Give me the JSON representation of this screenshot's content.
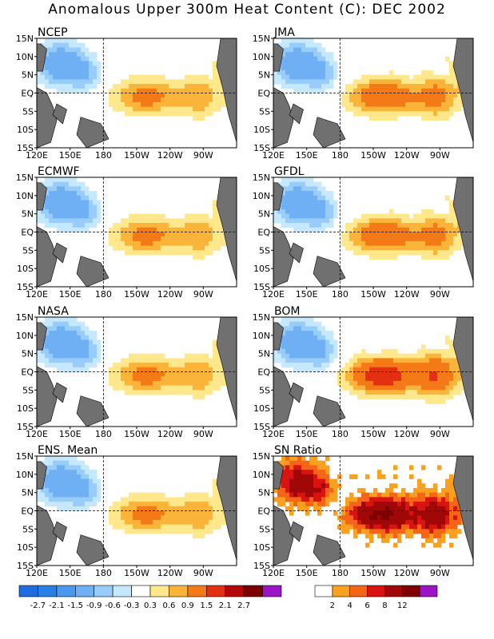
{
  "title": "Anomalous Upper 300m Heat Content (C): DEC 2002",
  "chart_data": [
    {
      "type": "heatmap",
      "panel_title": "NCEP",
      "x_ticks": [
        "120E",
        "150E",
        "180",
        "150W",
        "120W",
        "90W"
      ],
      "y_ticks": [
        "15N",
        "10N",
        "5N",
        "EQ",
        "5S",
        "10S",
        "15S"
      ],
      "warm_region_max": 0.9,
      "cold_region_min": -1.5,
      "scale": "anomaly"
    },
    {
      "type": "heatmap",
      "panel_title": "JMA",
      "x_ticks": [
        "120E",
        "150E",
        "180",
        "150W",
        "120W",
        "90W"
      ],
      "y_ticks": [
        "15N",
        "10N",
        "5N",
        "EQ",
        "5S",
        "10S",
        "15S"
      ],
      "warm_region_max": 1.5,
      "cold_region_min": -1.5,
      "scale": "anomaly"
    },
    {
      "type": "heatmap",
      "panel_title": "ECMWF",
      "x_ticks": [
        "120E",
        "150E",
        "180",
        "150W",
        "120W",
        "90W"
      ],
      "y_ticks": [
        "15N",
        "10N",
        "5N",
        "EQ",
        "5S",
        "10S",
        "15S"
      ],
      "warm_region_max": 0.9,
      "cold_region_min": -1.5,
      "scale": "anomaly"
    },
    {
      "type": "heatmap",
      "panel_title": "GFDL",
      "x_ticks": [
        "120E",
        "150E",
        "180",
        "150W",
        "120W",
        "90W"
      ],
      "y_ticks": [
        "15N",
        "10N",
        "5N",
        "EQ",
        "5S",
        "10S",
        "15S"
      ],
      "warm_region_max": 1.5,
      "cold_region_min": -1.5,
      "scale": "anomaly"
    },
    {
      "type": "heatmap",
      "panel_title": "NASA",
      "x_ticks": [
        "120E",
        "150E",
        "180",
        "150W",
        "120W",
        "90W"
      ],
      "y_ticks": [
        "15N",
        "10N",
        "5N",
        "EQ",
        "5S",
        "10S",
        "15S"
      ],
      "warm_region_max": 0.9,
      "cold_region_min": -1.5,
      "scale": "anomaly"
    },
    {
      "type": "heatmap",
      "panel_title": "BOM",
      "x_ticks": [
        "120E",
        "150E",
        "180",
        "150W",
        "120W",
        "90W"
      ],
      "y_ticks": [
        "15N",
        "10N",
        "5N",
        "EQ",
        "5S",
        "10S",
        "15S"
      ],
      "warm_region_max": 2.1,
      "cold_region_min": -1.5,
      "scale": "anomaly"
    },
    {
      "type": "heatmap",
      "panel_title": "ENS. Mean",
      "x_ticks": [
        "120E",
        "150E",
        "180",
        "150W",
        "120W",
        "90W"
      ],
      "y_ticks": [
        "15N",
        "10N",
        "5N",
        "EQ",
        "5S",
        "10S",
        "15S"
      ],
      "warm_region_max": 0.9,
      "cold_region_min": -1.5,
      "scale": "anomaly"
    },
    {
      "type": "heatmap",
      "panel_title": "SN Ratio",
      "x_ticks": [
        "120E",
        "150E",
        "180",
        "150W",
        "120W",
        "90W"
      ],
      "y_ticks": [
        "15N",
        "10N",
        "5N",
        "EQ",
        "5S",
        "10S",
        "15S"
      ],
      "warm_region_max": 12,
      "scale": "snr"
    }
  ],
  "legend_anomaly": {
    "labels": [
      "-2.7",
      "-2.1",
      "-1.5",
      "-0.9",
      "-0.6",
      "-0.3",
      "0.3",
      "0.6",
      "0.9",
      "1.5",
      "2.1",
      "2.7"
    ],
    "colors": [
      "#1e6ee0",
      "#2a7fe6",
      "#4a97ef",
      "#6fb0f4",
      "#98ccfa",
      "#c5e8fd",
      "#ffffff",
      "#ffe88c",
      "#fbb43a",
      "#f47a18",
      "#e23010",
      "#b70808",
      "#7c0000",
      "#9b14c8"
    ]
  },
  "legend_snr": {
    "labels": [
      "2",
      "4",
      "6",
      "8",
      "12"
    ],
    "colors": [
      "#ffffff",
      "#f8a020",
      "#f46518",
      "#d91212",
      "#a00808",
      "#7e0000",
      "#9b14c8"
    ]
  }
}
